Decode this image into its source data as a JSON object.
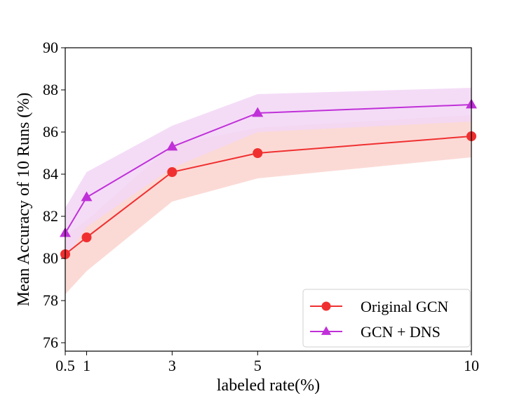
{
  "chart_data": {
    "type": "line",
    "title": "",
    "xlabel": "labeled rate(%)",
    "ylabel": "Mean Accuracy of 10 Runs (%)",
    "xlim": [
      0.5,
      10
    ],
    "ylim": [
      75.6,
      90
    ],
    "x_ticks": [
      0.5,
      1,
      3,
      5,
      10
    ],
    "x_tick_labels": [
      "0.5",
      "1",
      "3",
      "5",
      "10"
    ],
    "y_ticks": [
      76,
      78,
      80,
      82,
      84,
      86,
      88,
      90
    ],
    "y_tick_labels": [
      "76",
      "78",
      "80",
      "82",
      "84",
      "86",
      "88",
      "90"
    ],
    "grid": false,
    "legend_position": "bottom-right",
    "series": [
      {
        "name": "Original GCN",
        "marker": "circle",
        "color": "#f03030",
        "band_color": "#fad3cf",
        "x": [
          0.5,
          1,
          3,
          5,
          10
        ],
        "values": [
          80.2,
          81.0,
          84.1,
          85.0,
          85.8
        ],
        "lower": [
          78.3,
          79.4,
          82.7,
          83.8,
          84.8
        ],
        "upper": [
          81.1,
          81.8,
          85.4,
          86.2,
          86.8
        ]
      },
      {
        "name": "GCN + DNS",
        "marker": "triangle",
        "color": "#c030d8",
        "band_color": "#f2d6f6",
        "x": [
          0.5,
          1,
          3,
          5,
          10
        ],
        "values": [
          81.2,
          82.9,
          85.3,
          86.9,
          87.3
        ],
        "lower": [
          80.0,
          81.5,
          84.3,
          86.0,
          86.5
        ],
        "upper": [
          82.4,
          84.1,
          86.3,
          87.8,
          88.1
        ]
      }
    ]
  }
}
